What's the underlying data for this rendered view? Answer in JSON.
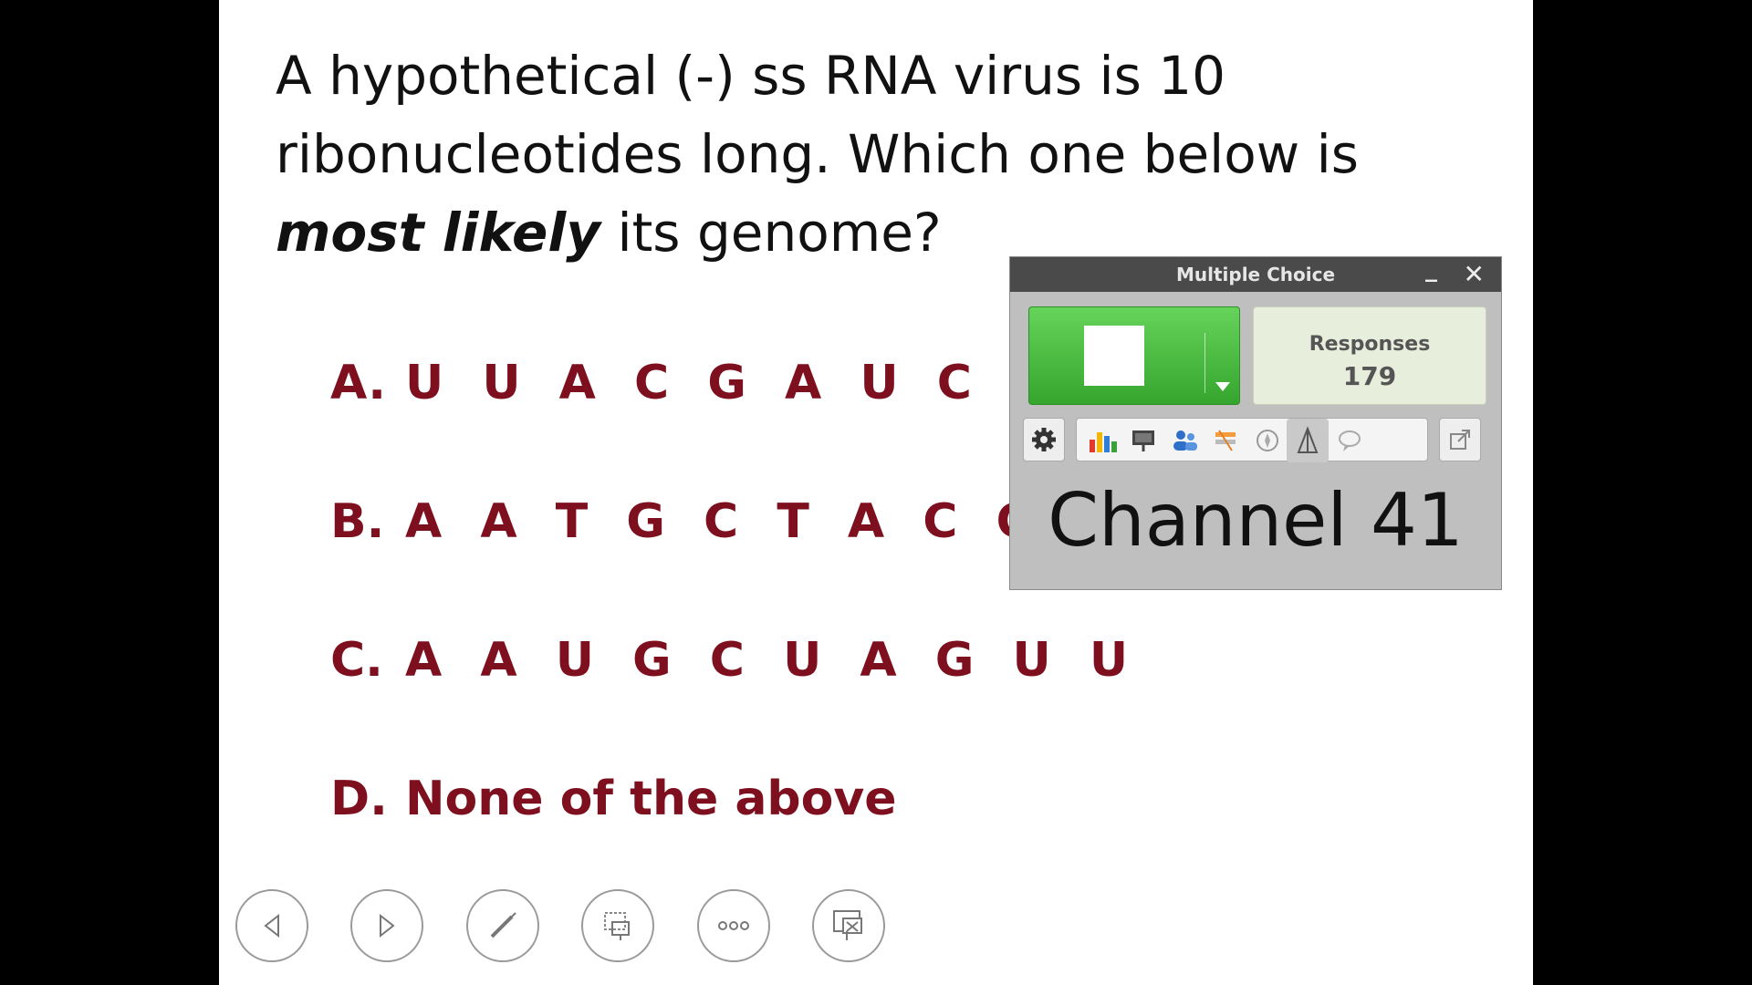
{
  "slide": {
    "question": {
      "line1": "A hypothetical (-) ss RNA virus is 10",
      "line2": "ribonucleotides long.  Which one below is",
      "emphasis": "most likely",
      "line3_rest": " its genome?"
    },
    "choices": [
      {
        "letter": "A.",
        "text": "U U A C G A U C A A"
      },
      {
        "letter": "B.",
        "text": "A A T G C T A C G G"
      },
      {
        "letter": "C.",
        "text": "A A U G C U A G U U"
      },
      {
        "letter": "D.",
        "text": "None of the above"
      }
    ],
    "choice_color": "#7d0f1e"
  },
  "poll": {
    "title": "Multiple Choice",
    "minimize_glyph": "_",
    "close_glyph": "✕",
    "responses_label": "Responses",
    "responses_count": "179",
    "channel": "Channel 41",
    "start_color": "#35a52e",
    "toolbar_icons": [
      "gear-icon",
      "bar-chart-icon",
      "presentation-icon",
      "participants-icon",
      "flag-icon",
      "compass-icon",
      "tower-icon",
      "comment-icon",
      "export-icon"
    ]
  },
  "controls": [
    "previous-icon",
    "next-icon",
    "pen-icon",
    "slide-picker-icon",
    "more-icon",
    "end-show-icon"
  ]
}
